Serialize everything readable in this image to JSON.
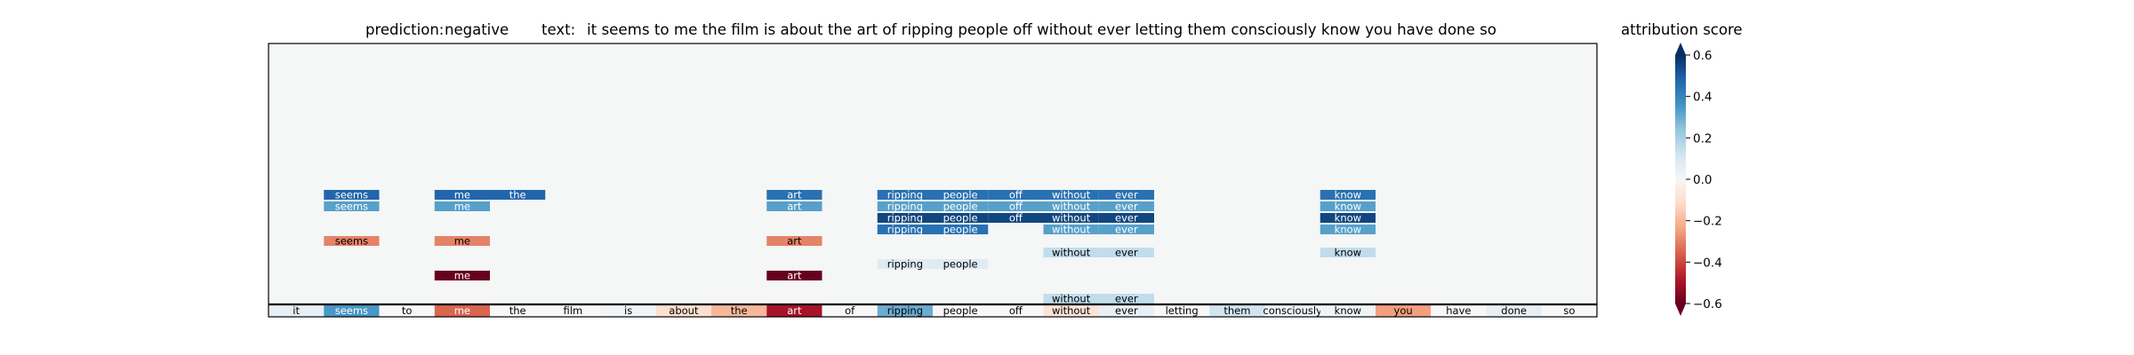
{
  "header": {
    "prediction_label": "prediction:",
    "prediction_value": "negative",
    "text_label": "text:",
    "text_value": "it seems to me the film is about the art of ripping people off without ever letting them consciously know you have done so"
  },
  "colorbar": {
    "title": "attribution score",
    "range": [
      -0.6,
      0.6
    ],
    "ticks": [
      {
        "value": 0.6,
        "label": "0.6"
      },
      {
        "value": 0.4,
        "label": "0.4"
      },
      {
        "value": 0.2,
        "label": "0.2"
      },
      {
        "value": 0.0,
        "label": "0.0"
      },
      {
        "value": -0.2,
        "label": "−0.2"
      },
      {
        "value": -0.4,
        "label": "−0.4"
      },
      {
        "value": -0.6,
        "label": "−0.6"
      }
    ],
    "colors": {
      "neg_extreme": "#67001f",
      "neutral": "#f7f7f7",
      "pos_extreme": "#053061"
    }
  },
  "chart_data": {
    "type": "heatmap",
    "colormap": "RdBu",
    "vmin": -0.6,
    "vmax": 0.6,
    "base_row": {
      "tokens": [
        "it",
        "seems",
        "to",
        "me",
        "the",
        "film",
        "is",
        "about",
        "the",
        "art",
        "of",
        "ripping",
        "people",
        "off",
        "without",
        "ever",
        "letting",
        "them",
        "consciously",
        "know",
        "you",
        "have",
        "done",
        "so"
      ],
      "scores": [
        0.05,
        0.35,
        0.0,
        -0.35,
        0.0,
        0.0,
        0.02,
        -0.1,
        -0.2,
        -0.5,
        0.0,
        0.3,
        0.0,
        0.0,
        -0.08,
        0.05,
        0.0,
        0.12,
        0.03,
        0.03,
        -0.25,
        0.0,
        0.05,
        0.0
      ]
    },
    "levels": [
      {
        "cells": [
          {
            "token": "seems",
            "index": 1,
            "score": 0.48
          },
          {
            "token": "me",
            "index": 3,
            "score": 0.48
          },
          {
            "token": "the",
            "index": 4,
            "score": 0.48
          },
          {
            "token": "art",
            "index": 9,
            "score": 0.45
          },
          {
            "token": "ripping",
            "index": 11,
            "score": 0.45
          },
          {
            "token": "people",
            "index": 12,
            "score": 0.45
          },
          {
            "token": "off",
            "index": 13,
            "score": 0.45
          },
          {
            "token": "without",
            "index": 14,
            "score": 0.45
          },
          {
            "token": "ever",
            "index": 15,
            "score": 0.45
          },
          {
            "token": "know",
            "index": 19,
            "score": 0.45
          }
        ]
      },
      {
        "cells": [
          {
            "token": "seems",
            "index": 1,
            "score": 0.33
          },
          {
            "token": "me",
            "index": 3,
            "score": 0.33
          },
          {
            "token": "art",
            "index": 9,
            "score": 0.33
          },
          {
            "token": "ripping",
            "index": 11,
            "score": 0.33
          },
          {
            "token": "people",
            "index": 12,
            "score": 0.33
          },
          {
            "token": "off",
            "index": 13,
            "score": 0.33
          },
          {
            "token": "without",
            "index": 14,
            "score": 0.33
          },
          {
            "token": "ever",
            "index": 15,
            "score": 0.33
          },
          {
            "token": "know",
            "index": 19,
            "score": 0.33
          }
        ]
      },
      {
        "cells": [
          {
            "token": "ripping",
            "index": 11,
            "score": 0.55
          },
          {
            "token": "people",
            "index": 12,
            "score": 0.55
          },
          {
            "token": "off",
            "index": 13,
            "score": 0.55
          },
          {
            "token": "without",
            "index": 14,
            "score": 0.55
          },
          {
            "token": "ever",
            "index": 15,
            "score": 0.55
          },
          {
            "token": "know",
            "index": 19,
            "score": 0.55
          }
        ]
      },
      {
        "cells": [
          {
            "token": "ripping",
            "index": 11,
            "score": 0.45
          },
          {
            "token": "people",
            "index": 12,
            "score": 0.45
          },
          {
            "token": "without",
            "index": 14,
            "score": 0.33
          },
          {
            "token": "ever",
            "index": 15,
            "score": 0.33
          },
          {
            "token": "know",
            "index": 19,
            "score": 0.33
          }
        ]
      },
      {
        "cells": [
          {
            "token": "seems",
            "index": 1,
            "score": -0.3
          },
          {
            "token": "me",
            "index": 3,
            "score": -0.3
          },
          {
            "token": "art",
            "index": 9,
            "score": -0.3
          }
        ]
      },
      {
        "cells": [
          {
            "token": "without",
            "index": 14,
            "score": 0.15
          },
          {
            "token": "ever",
            "index": 15,
            "score": 0.15
          },
          {
            "token": "know",
            "index": 19,
            "score": 0.15
          }
        ]
      },
      {
        "cells": [
          {
            "token": "ripping",
            "index": 11,
            "score": 0.08
          },
          {
            "token": "people",
            "index": 12,
            "score": 0.08
          }
        ]
      },
      {
        "cells": [
          {
            "token": "me",
            "index": 3,
            "score": -0.6
          },
          {
            "token": "art",
            "index": 9,
            "score": -0.6
          }
        ]
      },
      {
        "cells": []
      },
      {
        "cells": [
          {
            "token": "without",
            "index": 14,
            "score": 0.15
          },
          {
            "token": "ever",
            "index": 15,
            "score": 0.15
          }
        ]
      }
    ]
  }
}
